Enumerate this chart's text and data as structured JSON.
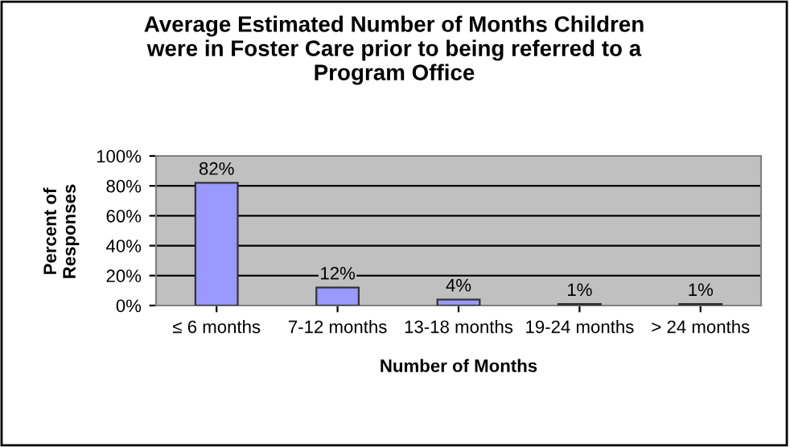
{
  "chart_data": {
    "type": "bar",
    "title": "Average Estimated Number of Months Children were in Foster Care prior to being referred to a Program Office",
    "xlabel": "Number of Months",
    "ylabel": "Percent of Responses",
    "categories": [
      "≤ 6 months",
      "7-12 months",
      "13-18 months",
      "19-24 months",
      "> 24 months"
    ],
    "values": [
      82,
      12,
      4,
      1,
      1
    ],
    "value_labels": [
      "82%",
      "12%",
      "4%",
      "1%",
      "1%"
    ],
    "color": "#9999ff",
    "ylim": [
      0,
      100
    ],
    "yticks": [
      {
        "value": 0,
        "label": "0%"
      },
      {
        "value": 20,
        "label": "20%"
      },
      {
        "value": 40,
        "label": "40%"
      },
      {
        "value": 60,
        "label": "60%"
      },
      {
        "value": 80,
        "label": "80%"
      },
      {
        "value": 100,
        "label": "100%"
      }
    ],
    "grid": "y",
    "legend": false
  }
}
